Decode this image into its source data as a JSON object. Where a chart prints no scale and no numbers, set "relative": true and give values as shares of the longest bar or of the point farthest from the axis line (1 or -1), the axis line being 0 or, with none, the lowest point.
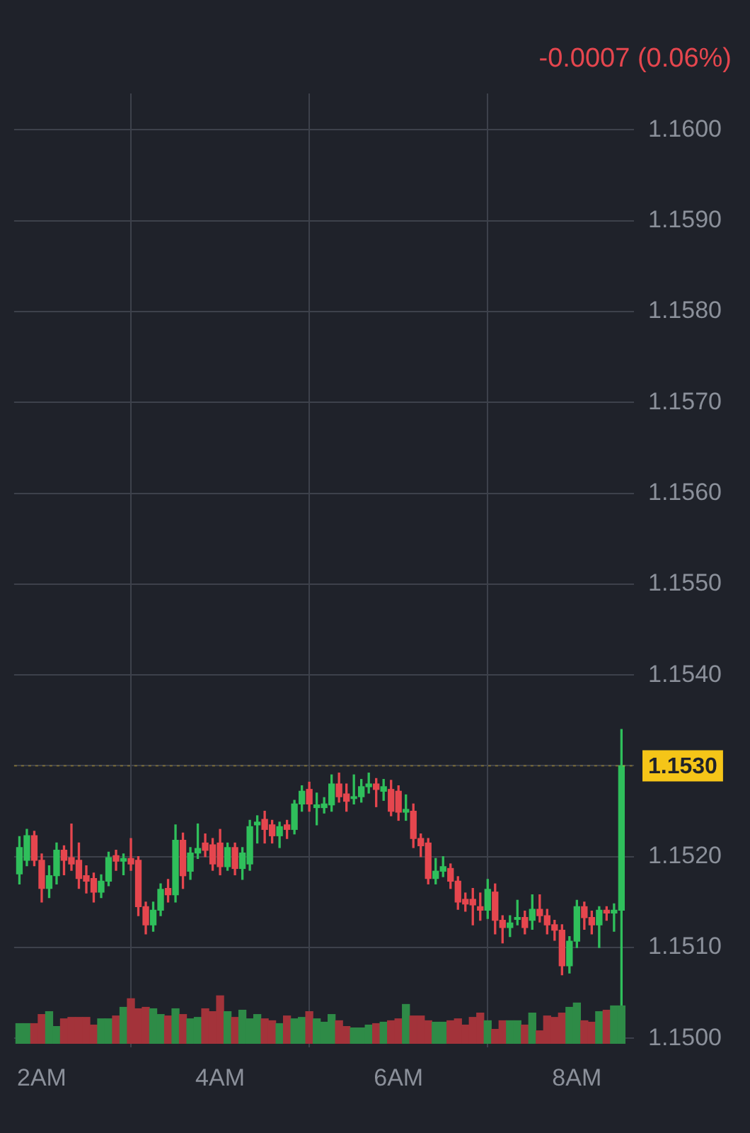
{
  "chart_data": [
    {
      "type": "candlestick",
      "title": "-0.0007 (0.06%)",
      "x": [
        1.75,
        1.8333,
        1.9167,
        2,
        2.0833,
        2.1667,
        2.25,
        2.3333,
        2.4167,
        2.5,
        2.5833,
        2.6667,
        2.75,
        2.8333,
        2.9167,
        3,
        3.0833,
        3.1667,
        3.25,
        3.3333,
        3.4167,
        3.5,
        3.5833,
        3.6667,
        3.75,
        3.8333,
        3.9167,
        4,
        4.0833,
        4.1667,
        4.25,
        4.3333,
        4.4167,
        4.5,
        4.5833,
        4.6667,
        4.75,
        4.8333,
        4.9167,
        5,
        5.0833,
        5.1667,
        5.25,
        5.3333,
        5.4167,
        5.5,
        5.5833,
        5.6667,
        5.75,
        5.8333,
        5.9167,
        6,
        6.0833,
        6.1667,
        6.25,
        6.3333,
        6.4167,
        6.5,
        6.5833,
        6.6667,
        6.75,
        6.8333,
        6.9167,
        7,
        7.0833,
        7.1667,
        7.25,
        7.3333,
        7.4167,
        7.5,
        7.5833,
        7.6667,
        7.75,
        7.8333,
        7.9167,
        8,
        8.0833,
        8.1667,
        8.25,
        8.3333,
        8.4167,
        8.5
      ],
      "ohlc": [
        [
          1.15181,
          1.15222,
          1.1517,
          1.1521
        ],
        [
          1.15196,
          1.1523,
          1.1519,
          1.15223
        ],
        [
          1.15223,
          1.15228,
          1.1519,
          1.15196
        ],
        [
          1.15196,
          1.15203,
          1.1515,
          1.15165
        ],
        [
          1.15165,
          1.1519,
          1.15155,
          1.15179
        ],
        [
          1.15179,
          1.15215,
          1.1517,
          1.15207
        ],
        [
          1.15207,
          1.15212,
          1.1518,
          1.15196
        ],
        [
          1.15199,
          1.15236,
          1.15185,
          1.15192
        ],
        [
          1.15196,
          1.15215,
          1.15165,
          1.15176
        ],
        [
          1.15179,
          1.1519,
          1.1516,
          1.15173
        ],
        [
          1.15176,
          1.15182,
          1.1515,
          1.15161
        ],
        [
          1.15161,
          1.1518,
          1.15155,
          1.15173
        ],
        [
          1.15173,
          1.15205,
          1.15168,
          1.15199
        ],
        [
          1.15201,
          1.15207,
          1.15185,
          1.15195
        ],
        [
          1.15195,
          1.15203,
          1.1518,
          1.15198
        ],
        [
          1.15198,
          1.1522,
          1.15185,
          1.15192
        ],
        [
          1.15196,
          1.152,
          1.15135,
          1.15145
        ],
        [
          1.15145,
          1.1515,
          1.15115,
          1.15125
        ],
        [
          1.15125,
          1.1515,
          1.15118,
          1.15141
        ],
        [
          1.15141,
          1.1517,
          1.15135,
          1.15164
        ],
        [
          1.15165,
          1.15175,
          1.1515,
          1.15158
        ],
        [
          1.15158,
          1.15235,
          1.1515,
          1.15218
        ],
        [
          1.15218,
          1.15226,
          1.15165,
          1.15179
        ],
        [
          1.15184,
          1.1521,
          1.15175,
          1.15204
        ],
        [
          1.15204,
          1.15236,
          1.15198,
          1.15209
        ],
        [
          1.15215,
          1.15225,
          1.152,
          1.15207
        ],
        [
          1.15213,
          1.1522,
          1.15185,
          1.15192
        ],
        [
          1.15215,
          1.1523,
          1.1518,
          1.15189
        ],
        [
          1.15189,
          1.15215,
          1.15185,
          1.1521
        ],
        [
          1.1521,
          1.15215,
          1.1518,
          1.15187
        ],
        [
          1.15187,
          1.1521,
          1.15175,
          1.15204
        ],
        [
          1.15192,
          1.1524,
          1.15185,
          1.15233
        ],
        [
          1.15235,
          1.15245,
          1.15215,
          1.15238
        ],
        [
          1.15241,
          1.1525,
          1.15215,
          1.1523
        ],
        [
          1.15235,
          1.1524,
          1.15215,
          1.15223
        ],
        [
          1.15223,
          1.15238,
          1.1521,
          1.15233
        ],
        [
          1.15235,
          1.1524,
          1.1522,
          1.1523
        ],
        [
          1.1523,
          1.15262,
          1.15225,
          1.15258
        ],
        [
          1.15258,
          1.15278,
          1.1525,
          1.15272
        ],
        [
          1.15274,
          1.15282,
          1.1525,
          1.15258
        ],
        [
          1.15254,
          1.1527,
          1.15235,
          1.15257
        ],
        [
          1.15254,
          1.15265,
          1.15248,
          1.15258
        ],
        [
          1.15257,
          1.1529,
          1.1525,
          1.1528
        ],
        [
          1.1528,
          1.15292,
          1.1526,
          1.15266
        ],
        [
          1.15269,
          1.1528,
          1.1525,
          1.15261
        ],
        [
          1.15264,
          1.1529,
          1.15258,
          1.15266
        ],
        [
          1.15266,
          1.15285,
          1.1526,
          1.15277
        ],
        [
          1.15277,
          1.15292,
          1.1527,
          1.1528
        ],
        [
          1.1528,
          1.15286,
          1.15255,
          1.15274
        ],
        [
          1.15272,
          1.15285,
          1.15262,
          1.15277
        ],
        [
          1.15274,
          1.15284,
          1.15245,
          1.1525
        ],
        [
          1.15272,
          1.15278,
          1.1524,
          1.15249
        ],
        [
          1.15249,
          1.15268,
          1.1524,
          1.15252
        ],
        [
          1.1525,
          1.15258,
          1.1521,
          1.1522
        ],
        [
          1.1522,
          1.15225,
          1.152,
          1.15212
        ],
        [
          1.15215,
          1.1522,
          1.1517,
          1.15176
        ],
        [
          1.15176,
          1.15198,
          1.1517,
          1.15184
        ],
        [
          1.15184,
          1.152,
          1.15178,
          1.15189
        ],
        [
          1.15187,
          1.15192,
          1.15165,
          1.15173
        ],
        [
          1.15173,
          1.15178,
          1.15142,
          1.1515
        ],
        [
          1.15153,
          1.1516,
          1.1514,
          1.15148
        ],
        [
          1.15153,
          1.15165,
          1.15125,
          1.15147
        ],
        [
          1.15145,
          1.1516,
          1.1513,
          1.15141
        ],
        [
          1.15141,
          1.15175,
          1.15132,
          1.15164
        ],
        [
          1.15161,
          1.1517,
          1.15115,
          1.1513
        ],
        [
          1.1513,
          1.15135,
          1.15105,
          1.15122
        ],
        [
          1.15122,
          1.15135,
          1.15112,
          1.15127
        ],
        [
          1.15131,
          1.15152,
          1.15125,
          1.15133
        ],
        [
          1.15133,
          1.1514,
          1.15115,
          1.15122
        ],
        [
          1.1513,
          1.15158,
          1.1512,
          1.15142
        ],
        [
          1.15142,
          1.15158,
          1.15128,
          1.15135
        ],
        [
          1.15135,
          1.15142,
          1.15115,
          1.15125
        ],
        [
          1.15125,
          1.1513,
          1.15108,
          1.15119
        ],
        [
          1.15119,
          1.15125,
          1.1507,
          1.1508
        ],
        [
          1.1508,
          1.15112,
          1.15072,
          1.15107
        ],
        [
          1.15107,
          1.15152,
          1.151,
          1.15145
        ],
        [
          1.15145,
          1.1515,
          1.1512,
          1.15133
        ],
        [
          1.15133,
          1.1514,
          1.15115,
          1.15125
        ],
        [
          1.15125,
          1.15145,
          1.151,
          1.15141
        ],
        [
          1.15141,
          1.15145,
          1.1513,
          1.15138
        ],
        [
          1.15138,
          1.15148,
          1.15118,
          1.15141
        ],
        [
          1.15141,
          1.1534,
          1.1501,
          1.153
        ]
      ],
      "colors": [
        "#2fbf5b",
        "#2fbf5b",
        "#e5464e",
        "#e5464e",
        "#2fbf5b",
        "#2fbf5b",
        "#e5464e",
        "#e5464e",
        "#e5464e",
        "#e5464e",
        "#e5464e",
        "#2fbf5b",
        "#2fbf5b",
        "#e5464e",
        "#2fbf5b",
        "#e5464e",
        "#e5464e",
        "#e5464e",
        "#2fbf5b",
        "#2fbf5b",
        "#e5464e",
        "#2fbf5b",
        "#e5464e",
        "#2fbf5b",
        "#2fbf5b",
        "#e5464e",
        "#e5464e",
        "#e5464e",
        "#2fbf5b",
        "#e5464e",
        "#2fbf5b",
        "#2fbf5b",
        "#2fbf5b",
        "#e5464e",
        "#e5464e",
        "#2fbf5b",
        "#e5464e",
        "#2fbf5b",
        "#2fbf5b",
        "#e5464e",
        "#2fbf5b",
        "#2fbf5b",
        "#2fbf5b",
        "#e5464e",
        "#e5464e",
        "#2fbf5b",
        "#2fbf5b",
        "#2fbf5b",
        "#e5464e",
        "#2fbf5b",
        "#e5464e",
        "#e5464e",
        "#2fbf5b",
        "#e5464e",
        "#e5464e",
        "#e5464e",
        "#2fbf5b",
        "#2fbf5b",
        "#e5464e",
        "#e5464e",
        "#e5464e",
        "#e5464e",
        "#e5464e",
        "#2fbf5b",
        "#e5464e",
        "#e5464e",
        "#2fbf5b",
        "#2fbf5b",
        "#e5464e",
        "#2fbf5b",
        "#e5464e",
        "#e5464e",
        "#e5464e",
        "#e5464e",
        "#2fbf5b",
        "#2fbf5b",
        "#e5464e",
        "#e5464e",
        "#2fbf5b",
        "#e5464e",
        "#2fbf5b",
        "#2fbf5b"
      ],
      "xlim": [
        1.69,
        8.64
      ],
      "xticks": [
        {
          "value": 2,
          "label": "2AM"
        },
        {
          "value": 4,
          "label": "4AM"
        },
        {
          "value": 6,
          "label": "6AM"
        },
        {
          "value": 8,
          "label": "8AM"
        }
      ],
      "ylim": [
        1.1499,
        1.1604
      ],
      "yticks": [
        {
          "value": 1.15,
          "label": "1.1500"
        },
        {
          "value": 1.151,
          "label": "1.1510"
        },
        {
          "value": 1.152,
          "label": "1.1520"
        },
        {
          "value": 1.153,
          "label": null
        },
        {
          "value": 1.154,
          "label": "1.1540"
        },
        {
          "value": 1.155,
          "label": "1.1550"
        },
        {
          "value": 1.156,
          "label": "1.1560"
        },
        {
          "value": 1.157,
          "label": "1.1570"
        },
        {
          "value": 1.158,
          "label": "1.1580"
        },
        {
          "value": 1.159,
          "label": "1.1590"
        },
        {
          "value": 1.16,
          "label": "1.1600"
        }
      ],
      "ref_lines": [
        {
          "axis": "y",
          "value": 1.153,
          "label": "1.1530",
          "color": "#f5c518"
        }
      ],
      "grid": true
    },
    {
      "type": "bar",
      "relative": true,
      "categories": [
        null,
        null,
        null,
        null,
        null,
        null,
        null,
        null,
        null,
        null,
        null,
        null,
        null,
        null,
        null,
        null,
        null,
        null,
        null,
        null,
        null,
        null,
        null,
        null,
        null,
        null,
        null,
        null,
        null,
        null,
        null,
        null,
        null,
        null,
        null,
        null,
        null,
        null,
        null,
        null,
        null,
        null,
        null,
        null,
        null,
        null,
        null,
        null,
        null,
        null,
        null,
        null,
        null,
        null,
        null,
        null,
        null,
        null,
        null,
        null,
        null,
        null,
        null,
        null,
        null,
        null,
        null,
        null,
        null,
        null,
        null,
        null,
        null,
        null,
        null,
        null,
        null,
        null,
        null,
        null,
        null,
        null
      ],
      "values": [
        0.42,
        0.42,
        0.42,
        0.61,
        0.67,
        0.36,
        0.52,
        0.55,
        0.55,
        0.55,
        0.39,
        0.52,
        0.52,
        0.58,
        0.76,
        0.94,
        0.73,
        0.76,
        0.73,
        0.61,
        0.58,
        0.73,
        0.61,
        0.52,
        0.55,
        0.73,
        0.67,
        1,
        0.67,
        0.55,
        0.7,
        0.52,
        0.61,
        0.52,
        0.48,
        0.42,
        0.58,
        0.52,
        0.55,
        0.67,
        0.52,
        0.45,
        0.61,
        0.48,
        0.36,
        0.33,
        0.33,
        0.39,
        0.42,
        0.45,
        0.48,
        0.52,
        0.82,
        0.58,
        0.58,
        0.48,
        0.45,
        0.45,
        0.48,
        0.52,
        0.39,
        0.55,
        0.64,
        0.48,
        0.3,
        0.48,
        0.48,
        0.48,
        0.39,
        0.64,
        0.27,
        0.58,
        0.55,
        0.64,
        0.76,
        0.85,
        0.48,
        0.45,
        0.67,
        0.7,
        0.79,
        0.79
      ],
      "colors": [
        "#2e8b47",
        "#2e8b47",
        "#a3333a",
        "#a3333a",
        "#2e8b47",
        "#2e8b47",
        "#a3333a",
        "#a3333a",
        "#a3333a",
        "#a3333a",
        "#a3333a",
        "#2e8b47",
        "#2e8b47",
        "#a3333a",
        "#2e8b47",
        "#a3333a",
        "#a3333a",
        "#a3333a",
        "#2e8b47",
        "#2e8b47",
        "#a3333a",
        "#2e8b47",
        "#a3333a",
        "#2e8b47",
        "#2e8b47",
        "#a3333a",
        "#a3333a",
        "#a3333a",
        "#2e8b47",
        "#a3333a",
        "#2e8b47",
        "#2e8b47",
        "#2e8b47",
        "#a3333a",
        "#a3333a",
        "#2e8b47",
        "#a3333a",
        "#2e8b47",
        "#2e8b47",
        "#a3333a",
        "#2e8b47",
        "#2e8b47",
        "#2e8b47",
        "#a3333a",
        "#a3333a",
        "#2e8b47",
        "#2e8b47",
        "#2e8b47",
        "#a3333a",
        "#2e8b47",
        "#a3333a",
        "#a3333a",
        "#2e8b47",
        "#a3333a",
        "#a3333a",
        "#a3333a",
        "#2e8b47",
        "#2e8b47",
        "#a3333a",
        "#a3333a",
        "#a3333a",
        "#a3333a",
        "#a3333a",
        "#2e8b47",
        "#a3333a",
        "#a3333a",
        "#2e8b47",
        "#2e8b47",
        "#a3333a",
        "#2e8b47",
        "#a3333a",
        "#a3333a",
        "#a3333a",
        "#a3333a",
        "#2e8b47",
        "#2e8b47",
        "#a3333a",
        "#a3333a",
        "#2e8b47",
        "#a3333a",
        "#2e8b47",
        "#2e8b47"
      ]
    }
  ]
}
